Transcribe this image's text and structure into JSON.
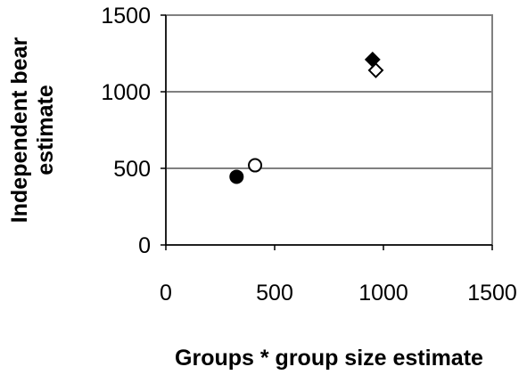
{
  "chart_data": {
    "type": "scatter",
    "xlabel": "Groups * group size estimate",
    "ylabel": [
      "Independent bear",
      "estimate"
    ],
    "xlim": [
      0,
      1500
    ],
    "ylim": [
      0,
      1500
    ],
    "xticks": [
      0,
      500,
      1000,
      1500
    ],
    "yticks": [
      0,
      500,
      1000,
      1500
    ],
    "xtick_labels": [
      "0",
      "500",
      "1000",
      "1500"
    ],
    "ytick_labels": [
      "0",
      "500",
      "1000",
      "1500"
    ],
    "grid": "horizontal",
    "legend": "none",
    "series": [
      {
        "marker": "circle",
        "fill": "#000000",
        "points": [
          {
            "x": 325,
            "y": 445
          }
        ]
      },
      {
        "marker": "circle",
        "fill": "#ffffff",
        "points": [
          {
            "x": 410,
            "y": 520
          }
        ]
      },
      {
        "marker": "diamond",
        "fill": "#000000",
        "points": [
          {
            "x": 950,
            "y": 1210
          }
        ]
      },
      {
        "marker": "diamond",
        "fill": "#ffffff",
        "points": [
          {
            "x": 965,
            "y": 1140
          }
        ]
      }
    ]
  }
}
